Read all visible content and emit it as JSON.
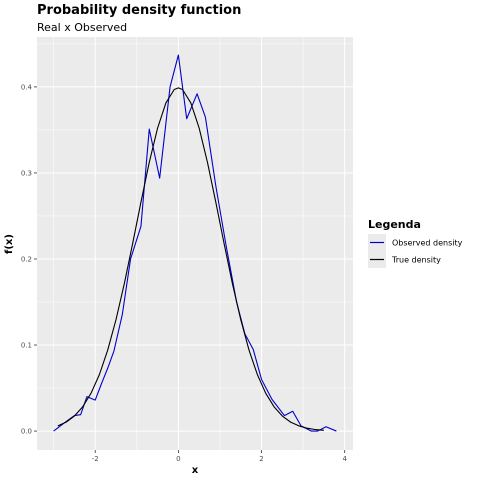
{
  "chart_data": {
    "type": "line",
    "title": "Probability density function",
    "subtitle": "Real x Observed",
    "xlabel": "x",
    "ylabel": "f(x)",
    "xlim": [
      -3.4,
      4.2
    ],
    "ylim": [
      -0.022,
      0.458
    ],
    "x_ticks": [
      -2,
      0,
      2,
      4
    ],
    "y_ticks": [
      0.0,
      0.1,
      0.2,
      0.3,
      0.4
    ],
    "x_tick_labels": [
      "-2",
      "0",
      "2",
      "4"
    ],
    "y_tick_labels": [
      "0.0",
      "0.1",
      "0.2",
      "0.3",
      "0.4"
    ],
    "grid": true,
    "legend": {
      "title": "Legenda",
      "placement": "right",
      "entries": [
        "Observed density",
        "True density"
      ]
    },
    "series": [
      {
        "name": "Observed density",
        "color": "#0000cd",
        "x": [
          -3.0,
          -2.7,
          -2.5,
          -2.35,
          -2.2,
          -2.0,
          -1.85,
          -1.7,
          -1.55,
          -1.35,
          -1.15,
          -0.9,
          -0.7,
          -0.45,
          -0.2,
          0.0,
          0.2,
          0.45,
          0.65,
          0.9,
          1.15,
          1.4,
          1.6,
          1.8,
          2.0,
          2.25,
          2.55,
          2.75,
          2.95,
          3.2,
          3.35,
          3.55,
          3.8
        ],
        "y": [
          0.0,
          0.011,
          0.018,
          0.019,
          0.04,
          0.036,
          0.055,
          0.073,
          0.093,
          0.135,
          0.2,
          0.238,
          0.351,
          0.294,
          0.4,
          0.437,
          0.363,
          0.392,
          0.365,
          0.285,
          0.215,
          0.15,
          0.113,
          0.095,
          0.06,
          0.037,
          0.018,
          0.023,
          0.006,
          0.0,
          0.0,
          0.005,
          0.0
        ]
      },
      {
        "name": "True density",
        "color": "#000000",
        "x": [
          -2.9,
          -2.7,
          -2.5,
          -2.3,
          -2.1,
          -1.9,
          -1.7,
          -1.5,
          -1.3,
          -1.1,
          -0.9,
          -0.7,
          -0.5,
          -0.3,
          -0.1,
          0.0,
          0.1,
          0.3,
          0.5,
          0.7,
          0.9,
          1.1,
          1.3,
          1.5,
          1.7,
          1.9,
          2.1,
          2.3,
          2.5,
          2.7,
          2.9,
          3.1,
          3.3,
          3.5
        ],
        "y": [
          0.006,
          0.0104,
          0.0175,
          0.0283,
          0.044,
          0.0656,
          0.094,
          0.1295,
          0.1714,
          0.2179,
          0.2661,
          0.3123,
          0.3521,
          0.3814,
          0.397,
          0.3989,
          0.397,
          0.3814,
          0.3521,
          0.3123,
          0.2661,
          0.2179,
          0.1714,
          0.1295,
          0.094,
          0.0656,
          0.044,
          0.0283,
          0.0175,
          0.0104,
          0.006,
          0.0033,
          0.0017,
          0.0009
        ]
      }
    ]
  }
}
